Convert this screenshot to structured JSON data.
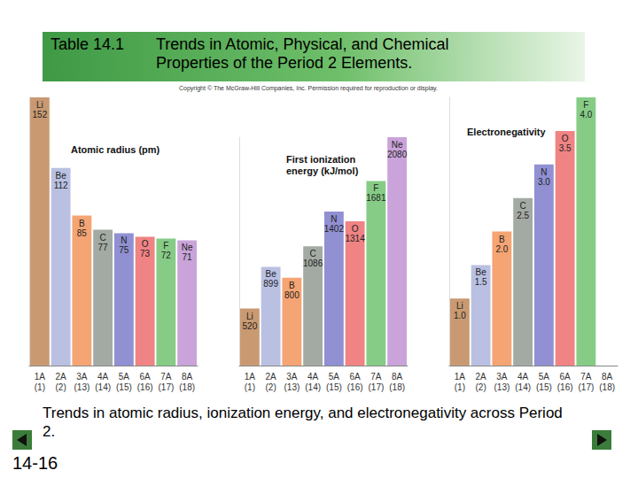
{
  "header": {
    "label": "Table 14.1",
    "title": "Trends in Atomic, Physical, and Chemical Properties of the Period 2 Elements."
  },
  "copyright": "Copyright © The McGraw-Hill Companies, Inc. Permission required for reproduction or display.",
  "caption": "Trends in atomic radius, ionization energy, and electronegativity across Period 2.",
  "slide_number": "14-16",
  "chart_data": [
    {
      "type": "bar",
      "title": "Atomic radius (pm)",
      "categories": [
        "1A\n(1)",
        "2A\n(2)",
        "3A\n(13)",
        "4A\n(14)",
        "5A\n(15)",
        "6A\n(16)",
        "7A\n(17)",
        "8A\n(18)"
      ],
      "element_symbols": [
        "Li",
        "Be",
        "B",
        "C",
        "N",
        "O",
        "F",
        "Ne"
      ],
      "values": [
        152,
        112,
        85,
        77,
        75,
        73,
        72,
        71
      ],
      "colors": [
        "#c99a72",
        "#b9c0e2",
        "#f5a473",
        "#a3aaa3",
        "#9090d2",
        "#f08383",
        "#86cc86",
        "#c9a3d9"
      ],
      "ylim": [
        0,
        152
      ],
      "data_labels": true,
      "tick_labels": "x",
      "grid": false
    },
    {
      "type": "bar",
      "title": "First ionization\nenergy (kJ/mol)",
      "categories": [
        "1A\n(1)",
        "2A\n(2)",
        "3A\n(13)",
        "4A\n(14)",
        "5A\n(15)",
        "6A\n(16)",
        "7A\n(17)",
        "8A\n(18)"
      ],
      "element_symbols": [
        "Li",
        "Be",
        "B",
        "C",
        "N",
        "O",
        "F",
        "Ne"
      ],
      "values": [
        520,
        899,
        800,
        1086,
        1402,
        1314,
        1681,
        2080
      ],
      "colors": [
        "#c99a72",
        "#b9c0e2",
        "#f5a473",
        "#a3aaa3",
        "#9090d2",
        "#f08383",
        "#86cc86",
        "#c9a3d9"
      ],
      "ylim": [
        0,
        2080
      ],
      "data_labels": true,
      "tick_labels": "x",
      "grid": false
    },
    {
      "type": "bar",
      "title": "Electronegativity",
      "categories": [
        "1A\n(1)",
        "2A\n(2)",
        "3A\n(13)",
        "4A\n(14)",
        "5A\n(15)",
        "6A\n(16)",
        "7A\n(17)",
        "8A\n(18)"
      ],
      "element_symbols": [
        "Li",
        "Be",
        "B",
        "C",
        "N",
        "O",
        "F",
        null
      ],
      "values": [
        1.0,
        1.5,
        2.0,
        2.5,
        3.0,
        3.5,
        4.0,
        null
      ],
      "value_labels": [
        "1.0",
        "1.5",
        "2.0",
        "2.5",
        "3.0",
        "3.5",
        "4.0",
        null
      ],
      "colors": [
        "#c99a72",
        "#b9c0e2",
        "#f5a473",
        "#a3aaa3",
        "#9090d2",
        "#f08383",
        "#86cc86",
        "#c9a3d9"
      ],
      "ylim": [
        0,
        4.0
      ],
      "data_labels": true,
      "tick_labels": "x",
      "grid": false
    }
  ]
}
